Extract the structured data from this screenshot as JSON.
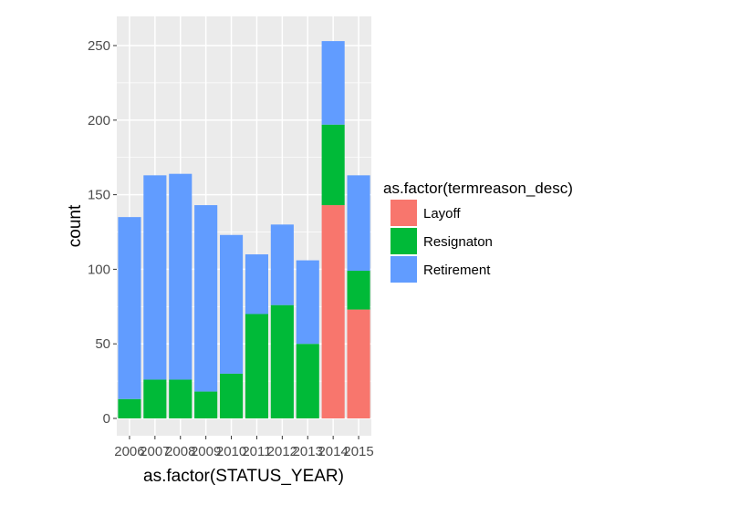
{
  "chart_data": {
    "type": "bar",
    "stacked": true,
    "xlabel": "as.factor(STATUS_YEAR)",
    "ylabel": "count",
    "categories": [
      "2006",
      "2007",
      "2008",
      "2009",
      "2010",
      "2011",
      "2012",
      "2013",
      "2014",
      "2015"
    ],
    "ylim": [
      0,
      265
    ],
    "yticks": [
      0,
      50,
      100,
      150,
      200,
      250
    ],
    "grid": true,
    "legend": {
      "title": "as.factor(termreason_desc)",
      "placement": "right"
    },
    "series": [
      {
        "name": "Layoff",
        "color": "#F8766D",
        "values": [
          0,
          0,
          0,
          0,
          0,
          0,
          0,
          0,
          143,
          73
        ]
      },
      {
        "name": "Resignaton",
        "color": "#00BA38",
        "values": [
          13,
          26,
          26,
          18,
          30,
          70,
          76,
          50,
          54,
          26
        ]
      },
      {
        "name": "Retirement",
        "color": "#619CFF",
        "values": [
          122,
          137,
          138,
          125,
          93,
          40,
          54,
          56,
          56,
          64
        ]
      }
    ]
  }
}
